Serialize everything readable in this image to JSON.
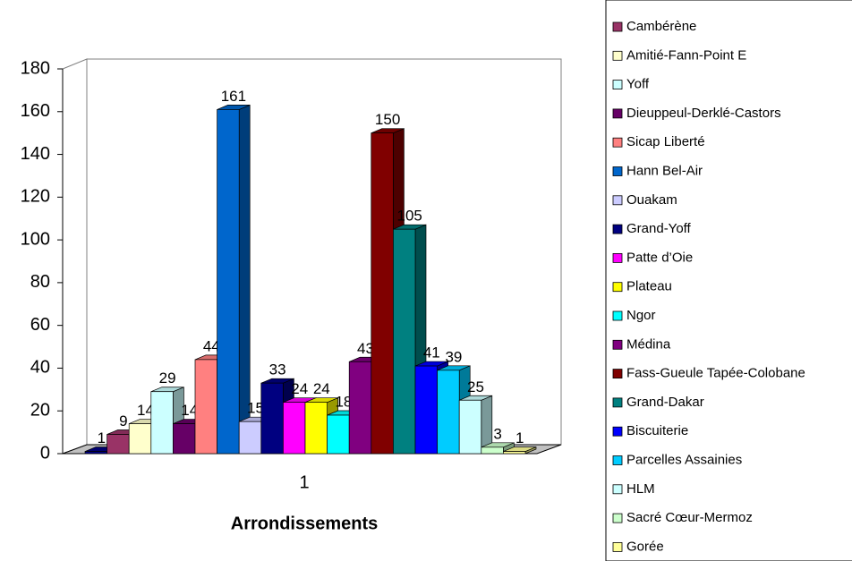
{
  "chart_data": {
    "type": "bar",
    "categories": [
      "1"
    ],
    "xlabel": "Arrondissements",
    "ylim": [
      0,
      180
    ],
    "yticks": [
      0,
      20,
      40,
      60,
      80,
      100,
      120,
      140,
      160,
      180
    ],
    "grid": false,
    "series": [
      {
        "name": null,
        "color": "#000080",
        "values": [
          1
        ]
      },
      {
        "name": "Cambérène",
        "color": "#993366",
        "values": [
          9
        ]
      },
      {
        "name": "Amitié-Fann-Point E",
        "color": "#ffffcc",
        "values": [
          14
        ]
      },
      {
        "name": "Yoff",
        "color": "#ccffff",
        "values": [
          29
        ]
      },
      {
        "name": "Dieuppeul-Derklé-Castors",
        "color": "#660066",
        "values": [
          14
        ]
      },
      {
        "name": "Sicap Liberté",
        "color": "#ff8080",
        "values": [
          44
        ]
      },
      {
        "name": "Hann Bel-Air",
        "color": "#0066cc",
        "values": [
          161
        ]
      },
      {
        "name": "Ouakam",
        "color": "#ccccff",
        "values": [
          15
        ]
      },
      {
        "name": "Grand-Yoff",
        "color": "#000080",
        "values": [
          33
        ]
      },
      {
        "name": "Patte d’Oie",
        "color": "#ff00ff",
        "values": [
          24
        ]
      },
      {
        "name": "Plateau",
        "color": "#ffff00",
        "values": [
          24
        ]
      },
      {
        "name": "Ngor",
        "color": "#00ffff",
        "values": [
          18
        ]
      },
      {
        "name": "Médina",
        "color": "#800080",
        "values": [
          43
        ]
      },
      {
        "name": "Fass-Gueule Tapée-Colobane",
        "color": "#800000",
        "values": [
          150
        ]
      },
      {
        "name": "Grand-Dakar",
        "color": "#008080",
        "values": [
          105
        ]
      },
      {
        "name": "Biscuiterie",
        "color": "#0000ff",
        "values": [
          41
        ]
      },
      {
        "name": "Parcelles Assainies",
        "color": "#00ccff",
        "values": [
          39
        ]
      },
      {
        "name": "HLM",
        "color": "#ccffff",
        "values": [
          25
        ]
      },
      {
        "name": "Sacré Cœur-Mermoz",
        "color": "#ccffcc",
        "values": [
          3
        ]
      },
      {
        "name": "Gorée",
        "color": "#ffff99",
        "values": [
          1
        ]
      }
    ]
  }
}
